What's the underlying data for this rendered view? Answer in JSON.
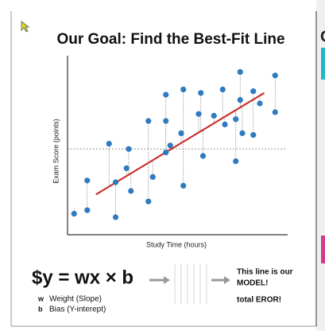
{
  "chart_data": {
    "type": "scatter",
    "title": "Our Goal: Find the Best-Fit Line",
    "xlabel": "Study Time (hours)",
    "ylabel": "Exam Score (points)",
    "xlim": [
      0,
      10
    ],
    "ylim": [
      0,
      10
    ],
    "color": "#2e7bbf",
    "x": [
      0.3,
      0.9,
      0.9,
      1.9,
      2.2,
      2.2,
      2.7,
      2.8,
      2.9,
      3.7,
      3.7,
      3.9,
      4.5,
      4.5,
      4.5,
      4.7,
      5.2,
      5.3,
      5.3,
      6.0,
      6.1,
      6.2,
      6.7,
      7.1,
      7.2,
      7.7,
      7.7,
      7.9,
      7.9,
      8.0,
      8.5,
      8.5,
      8.8,
      9.5,
      9.5
    ],
    "values": [
      1.2,
      1.4,
      3.1,
      5.2,
      3.0,
      1.0,
      3.8,
      4.9,
      2.5,
      6.5,
      1.9,
      3.3,
      4.7,
      6.5,
      8.0,
      5.1,
      5.8,
      2.8,
      8.3,
      6.9,
      8.1,
      4.5,
      6.8,
      8.3,
      6.3,
      6.6,
      4.2,
      7.7,
      9.3,
      5.8,
      8.2,
      5.7,
      7.5,
      9.1,
      7.0
    ],
    "fit_line": {
      "x": [
        1.3,
        9.0
      ],
      "y": [
        2.3,
        8.1
      ],
      "color": "#c9302c"
    },
    "mean_line": 4.9
  },
  "slide": {
    "equation": "$y = wx × b",
    "legend": [
      {
        "symbol": "w",
        "text": "Weight (Slope)"
      },
      {
        "symbol": "b",
        "text": "Bias (Y-interept)"
      }
    ],
    "note": [
      "This line is our",
      "MODEL!",
      "total EROR!"
    ],
    "next_slide_fragment": "C"
  }
}
